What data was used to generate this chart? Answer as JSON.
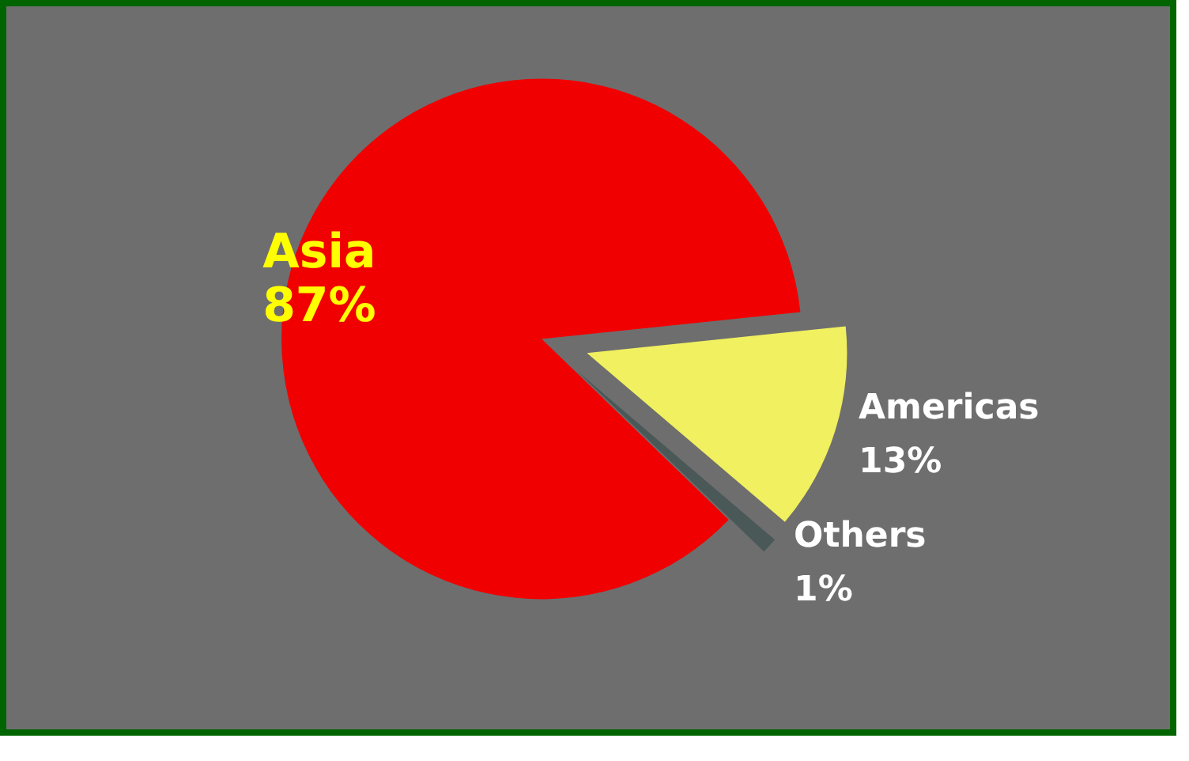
{
  "chart_data": {
    "type": "pie",
    "categories": [
      "Asia",
      "Americas",
      "Others"
    ],
    "values": [
      87,
      13,
      1
    ],
    "value_labels": [
      "87%",
      "13%",
      "1%"
    ],
    "colors": [
      "#f00000",
      "#f0f060",
      "#4a5858"
    ],
    "legend": false
  }
}
